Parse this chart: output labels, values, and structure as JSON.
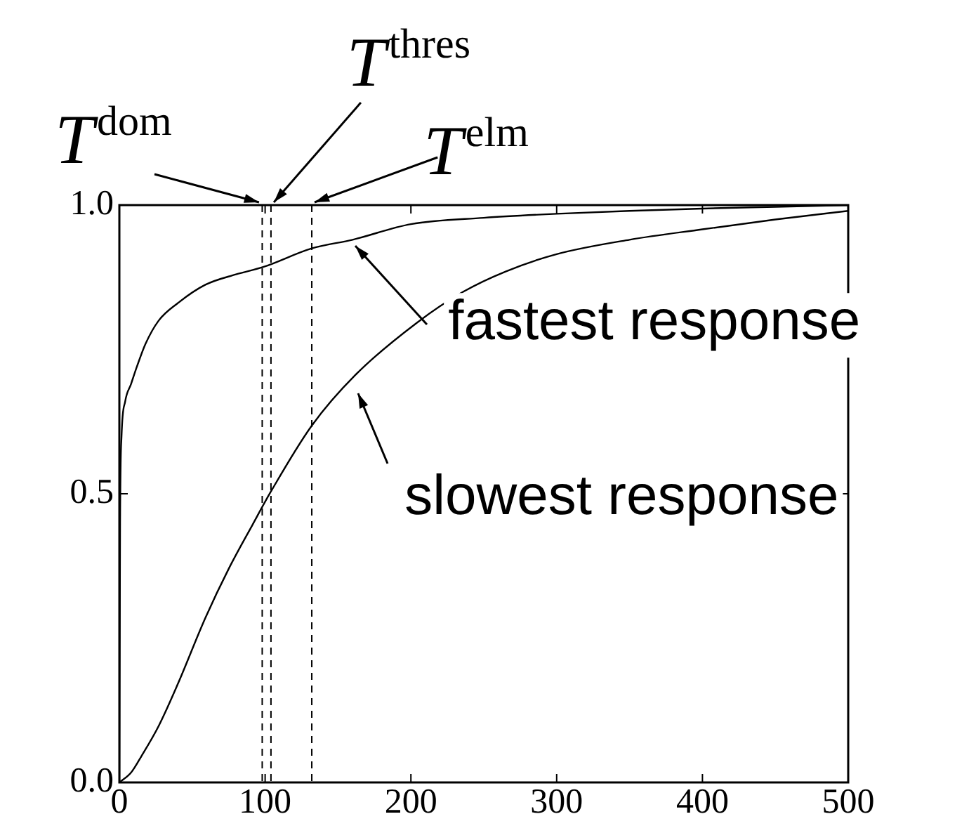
{
  "chart_data": {
    "type": "line",
    "xlim": [
      0,
      500
    ],
    "xticks": [
      0,
      100,
      200,
      300,
      400,
      500
    ],
    "ylim": [
      0,
      1
    ],
    "yticks": [
      {
        "value": 0,
        "label": "0.0"
      },
      {
        "value": 0.5,
        "label": "0.5"
      },
      {
        "value": 1,
        "label": "1.0"
      }
    ],
    "grid": false,
    "marker": "none",
    "line_style": "solid",
    "ref_lines": [
      {
        "axis": "x",
        "value": 98,
        "label": "T$^{dom}$",
        "line_style": "dashed",
        "color": "#000000"
      },
      {
        "axis": "x",
        "value": 104,
        "label": "T$^{thres}$",
        "line_style": "dashed",
        "color": "#000000"
      },
      {
        "axis": "x",
        "value": 132,
        "label": "T$^{elm}$",
        "line_style": "dashed",
        "color": "#000000"
      }
    ],
    "series": [
      {
        "name": "fastest response",
        "color": "#000000",
        "x": [
          0,
          0.5,
          1.5,
          4,
          8,
          12,
          18,
          27,
          40,
          59,
          80,
          99,
          132,
          160,
          200,
          250,
          300,
          350,
          400,
          450,
          500
        ],
        "values": [
          0,
          0.45,
          0.6,
          0.66,
          0.69,
          0.72,
          0.76,
          0.8,
          0.83,
          0.862,
          0.88,
          0.893,
          0.925,
          0.94,
          0.967,
          0.978,
          0.985,
          0.99,
          0.994,
          0.997,
          1.0
        ]
      },
      {
        "name": "slowest response",
        "color": "#000000",
        "x": [
          0,
          8,
          15,
          27,
          40,
          59,
          75,
          91.5,
          104,
          132,
          162,
          204,
          236,
          265,
          300,
          350,
          400,
          450,
          500
        ],
        "values": [
          0,
          0.017,
          0.045,
          0.098,
          0.17,
          0.285,
          0.37,
          0.447,
          0.504,
          0.618,
          0.706,
          0.796,
          0.85,
          0.885,
          0.915,
          0.94,
          0.958,
          0.975,
          0.99
        ]
      }
    ]
  }
}
